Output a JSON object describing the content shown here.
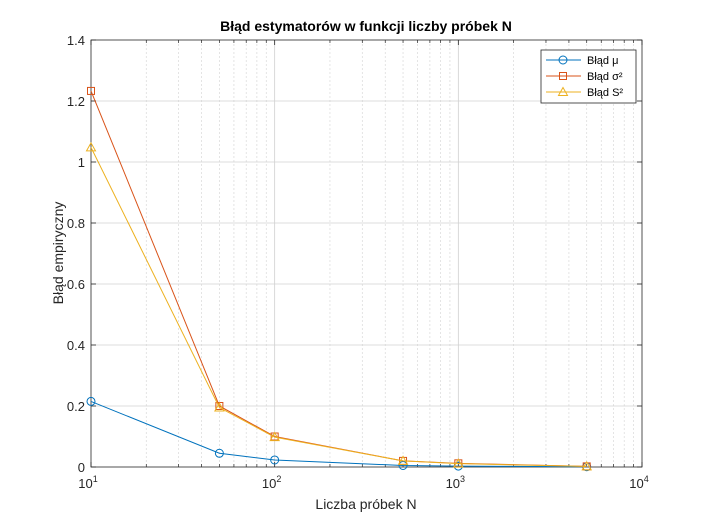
{
  "chart_data": {
    "type": "line",
    "title": "Błąd estymatorów w funkcji liczby próbek N",
    "xlabel": "Liczba próbek N",
    "ylabel": "Błąd empiryczny",
    "xscale": "log",
    "xlim": [
      10,
      10000
    ],
    "ylim": [
      0,
      1.4
    ],
    "grid": true,
    "minor_grid_x": true,
    "legend_position": "top-right",
    "x_tick_labels": [
      {
        "base": "10",
        "exp": "1"
      },
      {
        "base": "10",
        "exp": "2"
      },
      {
        "base": "10",
        "exp": "3"
      },
      {
        "base": "10",
        "exp": "4"
      }
    ],
    "y_tick_labels": [
      "0",
      "0.2",
      "0.4",
      "0.6",
      "0.8",
      "1",
      "1.2",
      "1.4"
    ],
    "x": [
      10,
      50,
      100,
      500,
      1000,
      5000
    ],
    "series": [
      {
        "name": "Błąd μ",
        "color": "#0072BD",
        "marker": "circle",
        "values": [
          0.215,
          0.045,
          0.023,
          0.005,
          0.003,
          0.001
        ]
      },
      {
        "name": "Błąd σ²",
        "color": "#D95319",
        "marker": "square",
        "values": [
          1.233,
          0.2,
          0.1,
          0.02,
          0.012,
          0.002
        ]
      },
      {
        "name": "Błąd S²",
        "color": "#EDB120",
        "marker": "triangle",
        "values": [
          1.048,
          0.195,
          0.098,
          0.02,
          0.011,
          0.002
        ]
      }
    ]
  }
}
